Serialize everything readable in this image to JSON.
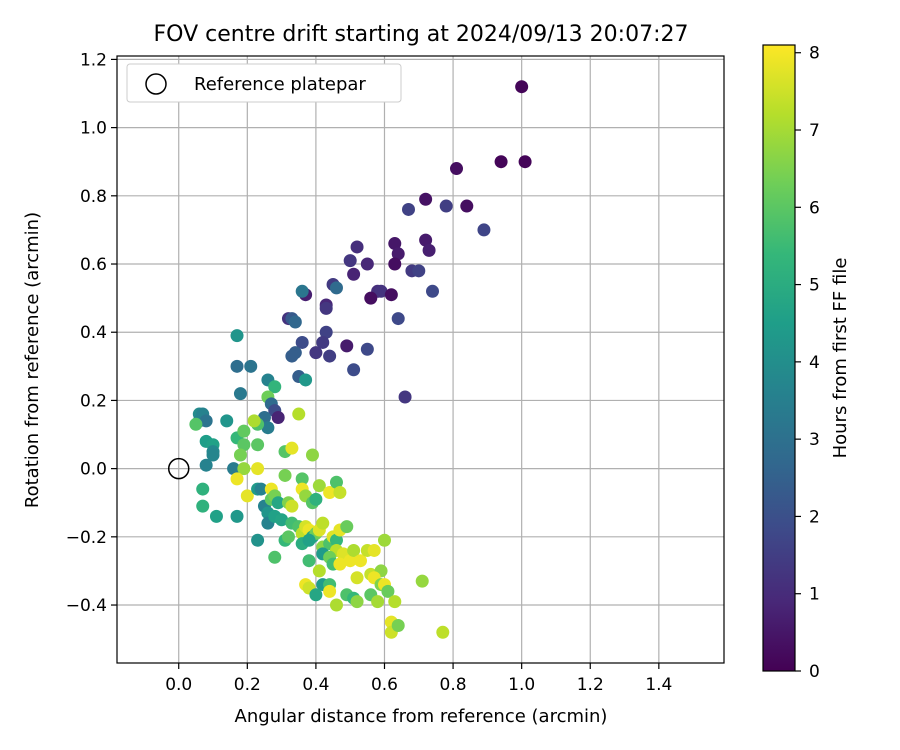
{
  "chart_data": {
    "type": "scatter",
    "title": "FOV centre drift starting at 2024/09/13 20:07:27",
    "xlabel": "Angular distance from reference (arcmin)",
    "ylabel": "Rotation from reference (arcmin)",
    "xlim": [
      -0.18,
      1.59
    ],
    "ylim": [
      -0.57,
      1.21
    ],
    "xticks": [
      0.0,
      0.2,
      0.4,
      0.6,
      0.8,
      1.0,
      1.2,
      1.4
    ],
    "xtick_labels": [
      "0.0",
      "0.2",
      "0.4",
      "0.6",
      "0.8",
      "1.0",
      "1.2",
      "1.4"
    ],
    "yticks": [
      -0.4,
      -0.2,
      0.0,
      0.2,
      0.4,
      0.6,
      0.8,
      1.0,
      1.2
    ],
    "ytick_labels": [
      "−0.4",
      "−0.2",
      "0.0",
      "0.2",
      "0.4",
      "0.6",
      "0.8",
      "1.0",
      "1.2"
    ],
    "grid": true,
    "legend": {
      "position": "upper-left",
      "label": "Reference platepar",
      "marker": "hollow-circle"
    },
    "reference_point": {
      "x": 0.0,
      "y": 0.0
    },
    "colorbar": {
      "label": "Hours from first FF file",
      "min": 0,
      "max": 8.1,
      "ticks": [
        0,
        1,
        2,
        3,
        4,
        5,
        6,
        7,
        8
      ],
      "tick_labels": [
        "0",
        "1",
        "2",
        "3",
        "4",
        "5",
        "6",
        "7",
        "8"
      ],
      "colormap": "viridis",
      "stops": [
        "#440154",
        "#482878",
        "#3e4989",
        "#31688e",
        "#26828e",
        "#1f9e89",
        "#35b779",
        "#6ece58",
        "#b5de2b",
        "#fde725"
      ]
    },
    "points": [
      {
        "x": 1.0,
        "y": 1.12,
        "c": 0.1
      },
      {
        "x": 0.94,
        "y": 0.9,
        "c": 0.1
      },
      {
        "x": 1.01,
        "y": 0.9,
        "c": 0.1
      },
      {
        "x": 0.81,
        "y": 0.88,
        "c": 0.3
      },
      {
        "x": 0.84,
        "y": 0.77,
        "c": 0.3
      },
      {
        "x": 0.72,
        "y": 0.79,
        "c": 0.4
      },
      {
        "x": 0.78,
        "y": 0.77,
        "c": 1.5
      },
      {
        "x": 0.89,
        "y": 0.7,
        "c": 1.7
      },
      {
        "x": 0.67,
        "y": 0.76,
        "c": 1.6
      },
      {
        "x": 0.72,
        "y": 0.67,
        "c": 0.6
      },
      {
        "x": 0.73,
        "y": 0.64,
        "c": 0.7
      },
      {
        "x": 0.63,
        "y": 0.66,
        "c": 0.5
      },
      {
        "x": 0.64,
        "y": 0.63,
        "c": 0.6
      },
      {
        "x": 0.63,
        "y": 0.6,
        "c": 0.3
      },
      {
        "x": 0.68,
        "y": 0.58,
        "c": 1.4
      },
      {
        "x": 0.7,
        "y": 0.58,
        "c": 1.6
      },
      {
        "x": 0.52,
        "y": 0.65,
        "c": 1.1
      },
      {
        "x": 0.5,
        "y": 0.61,
        "c": 1.3
      },
      {
        "x": 0.55,
        "y": 0.6,
        "c": 0.9
      },
      {
        "x": 0.51,
        "y": 0.57,
        "c": 0.8
      },
      {
        "x": 0.58,
        "y": 0.52,
        "c": 1.1
      },
      {
        "x": 0.59,
        "y": 0.52,
        "c": 1.2
      },
      {
        "x": 0.56,
        "y": 0.5,
        "c": 0.3
      },
      {
        "x": 0.62,
        "y": 0.51,
        "c": 0.3
      },
      {
        "x": 0.74,
        "y": 0.52,
        "c": 1.8
      },
      {
        "x": 0.64,
        "y": 0.44,
        "c": 1.8
      },
      {
        "x": 0.45,
        "y": 0.54,
        "c": 1.4
      },
      {
        "x": 0.46,
        "y": 0.53,
        "c": 2.8
      },
      {
        "x": 0.37,
        "y": 0.51,
        "c": 0.7
      },
      {
        "x": 0.36,
        "y": 0.52,
        "c": 3.2
      },
      {
        "x": 0.43,
        "y": 0.48,
        "c": 0.9
      },
      {
        "x": 0.43,
        "y": 0.47,
        "c": 1.3
      },
      {
        "x": 0.32,
        "y": 0.44,
        "c": 1.2
      },
      {
        "x": 0.33,
        "y": 0.44,
        "c": 2.3
      },
      {
        "x": 0.34,
        "y": 0.43,
        "c": 2.7
      },
      {
        "x": 0.43,
        "y": 0.4,
        "c": 1.6
      },
      {
        "x": 0.42,
        "y": 0.37,
        "c": 1.4
      },
      {
        "x": 0.4,
        "y": 0.34,
        "c": 1.3
      },
      {
        "x": 0.49,
        "y": 0.36,
        "c": 0.6
      },
      {
        "x": 0.44,
        "y": 0.33,
        "c": 1.5
      },
      {
        "x": 0.36,
        "y": 0.37,
        "c": 1.9
      },
      {
        "x": 0.34,
        "y": 0.34,
        "c": 2.4
      },
      {
        "x": 0.33,
        "y": 0.33,
        "c": 2.4
      },
      {
        "x": 0.51,
        "y": 0.29,
        "c": 1.9
      },
      {
        "x": 0.55,
        "y": 0.35,
        "c": 1.8
      },
      {
        "x": 0.66,
        "y": 0.21,
        "c": 1.3
      },
      {
        "x": 0.35,
        "y": 0.27,
        "c": 2.4
      },
      {
        "x": 0.37,
        "y": 0.26,
        "c": 4.3
      },
      {
        "x": 0.17,
        "y": 0.39,
        "c": 4.2
      },
      {
        "x": 0.17,
        "y": 0.3,
        "c": 2.9
      },
      {
        "x": 0.21,
        "y": 0.3,
        "c": 3.1
      },
      {
        "x": 0.26,
        "y": 0.26,
        "c": 3.6
      },
      {
        "x": 0.28,
        "y": 0.24,
        "c": 5.3
      },
      {
        "x": 0.18,
        "y": 0.22,
        "c": 3.3
      },
      {
        "x": 0.26,
        "y": 0.21,
        "c": 6.3
      },
      {
        "x": 0.27,
        "y": 0.19,
        "c": 2.8
      },
      {
        "x": 0.28,
        "y": 0.17,
        "c": 1.9
      },
      {
        "x": 0.29,
        "y": 0.15,
        "c": 0.8
      },
      {
        "x": 0.35,
        "y": 0.16,
        "c": 7.2
      },
      {
        "x": 0.25,
        "y": 0.15,
        "c": 2.9
      },
      {
        "x": 0.26,
        "y": 0.12,
        "c": 3.4
      },
      {
        "x": 0.23,
        "y": 0.13,
        "c": 5.8
      },
      {
        "x": 0.22,
        "y": 0.14,
        "c": 7.1
      },
      {
        "x": 0.06,
        "y": 0.16,
        "c": 3.9
      },
      {
        "x": 0.07,
        "y": 0.16,
        "c": 3.6
      },
      {
        "x": 0.06,
        "y": 0.14,
        "c": 3.6
      },
      {
        "x": 0.08,
        "y": 0.14,
        "c": 3.1
      },
      {
        "x": 0.05,
        "y": 0.13,
        "c": 5.9
      },
      {
        "x": 0.14,
        "y": 0.14,
        "c": 4.2
      },
      {
        "x": 0.08,
        "y": 0.08,
        "c": 4.5
      },
      {
        "x": 0.1,
        "y": 0.07,
        "c": 4.6
      },
      {
        "x": 0.1,
        "y": 0.05,
        "c": 3.8
      },
      {
        "x": 0.1,
        "y": 0.04,
        "c": 3.7
      },
      {
        "x": 0.08,
        "y": 0.01,
        "c": 3.6
      },
      {
        "x": 0.17,
        "y": 0.09,
        "c": 5.4
      },
      {
        "x": 0.19,
        "y": 0.11,
        "c": 6.1
      },
      {
        "x": 0.19,
        "y": 0.07,
        "c": 6.0
      },
      {
        "x": 0.23,
        "y": 0.07,
        "c": 6.0
      },
      {
        "x": 0.18,
        "y": 0.04,
        "c": 6.4
      },
      {
        "x": 0.16,
        "y": 0.0,
        "c": 3.4
      },
      {
        "x": 0.19,
        "y": 0.0,
        "c": 6.8
      },
      {
        "x": 0.17,
        "y": -0.03,
        "c": 7.9
      },
      {
        "x": 0.23,
        "y": 0.0,
        "c": 7.8
      },
      {
        "x": 0.31,
        "y": 0.05,
        "c": 5.9
      },
      {
        "x": 0.33,
        "y": 0.06,
        "c": 7.8
      },
      {
        "x": 0.39,
        "y": 0.04,
        "c": 6.7
      },
      {
        "x": 0.31,
        "y": -0.02,
        "c": 6.4
      },
      {
        "x": 0.36,
        "y": -0.03,
        "c": 5.9
      },
      {
        "x": 0.07,
        "y": -0.06,
        "c": 5.2
      },
      {
        "x": 0.07,
        "y": -0.11,
        "c": 5.2
      },
      {
        "x": 0.11,
        "y": -0.14,
        "c": 4.6
      },
      {
        "x": 0.17,
        "y": -0.14,
        "c": 4.3
      },
      {
        "x": 0.2,
        "y": -0.08,
        "c": 7.8
      },
      {
        "x": 0.23,
        "y": -0.06,
        "c": 4.4
      },
      {
        "x": 0.24,
        "y": -0.06,
        "c": 3.6
      },
      {
        "x": 0.25,
        "y": -0.11,
        "c": 3.6
      },
      {
        "x": 0.27,
        "y": -0.06,
        "c": 7.9
      },
      {
        "x": 0.27,
        "y": -0.09,
        "c": 6.1
      },
      {
        "x": 0.28,
        "y": -0.08,
        "c": 6.4
      },
      {
        "x": 0.29,
        "y": -0.1,
        "c": 4.8
      },
      {
        "x": 0.26,
        "y": -0.13,
        "c": 4.2
      },
      {
        "x": 0.26,
        "y": -0.16,
        "c": 3.6
      },
      {
        "x": 0.28,
        "y": -0.14,
        "c": 4.6
      },
      {
        "x": 0.3,
        "y": -0.15,
        "c": 4.7
      },
      {
        "x": 0.32,
        "y": -0.1,
        "c": 6.5
      },
      {
        "x": 0.33,
        "y": -0.11,
        "c": 7.5
      },
      {
        "x": 0.36,
        "y": -0.06,
        "c": 7.9
      },
      {
        "x": 0.37,
        "y": -0.08,
        "c": 6.8
      },
      {
        "x": 0.39,
        "y": -0.1,
        "c": 5.9
      },
      {
        "x": 0.4,
        "y": -0.09,
        "c": 5.2
      },
      {
        "x": 0.41,
        "y": -0.05,
        "c": 6.9
      },
      {
        "x": 0.44,
        "y": -0.07,
        "c": 7.9
      },
      {
        "x": 0.46,
        "y": -0.04,
        "c": 5.8
      },
      {
        "x": 0.47,
        "y": -0.07,
        "c": 7.4
      },
      {
        "x": 0.33,
        "y": -0.16,
        "c": 5.6
      },
      {
        "x": 0.35,
        "y": -0.17,
        "c": 5.8
      },
      {
        "x": 0.36,
        "y": -0.19,
        "c": 7.3
      },
      {
        "x": 0.37,
        "y": -0.17,
        "c": 7.6
      },
      {
        "x": 0.38,
        "y": -0.18,
        "c": 7.9
      },
      {
        "x": 0.39,
        "y": -0.2,
        "c": 4.8
      },
      {
        "x": 0.4,
        "y": -0.19,
        "c": 6.3
      },
      {
        "x": 0.41,
        "y": -0.18,
        "c": 7.7
      },
      {
        "x": 0.42,
        "y": -0.16,
        "c": 7.3
      },
      {
        "x": 0.23,
        "y": -0.21,
        "c": 4.1
      },
      {
        "x": 0.31,
        "y": -0.21,
        "c": 5.4
      },
      {
        "x": 0.32,
        "y": -0.2,
        "c": 6.0
      },
      {
        "x": 0.36,
        "y": -0.22,
        "c": 5.0
      },
      {
        "x": 0.38,
        "y": -0.21,
        "c": 4.6
      },
      {
        "x": 0.42,
        "y": -0.23,
        "c": 6.7
      },
      {
        "x": 0.44,
        "y": -0.22,
        "c": 5.8
      },
      {
        "x": 0.45,
        "y": -0.2,
        "c": 7.7
      },
      {
        "x": 0.46,
        "y": -0.21,
        "c": 5.4
      },
      {
        "x": 0.47,
        "y": -0.18,
        "c": 7.8
      },
      {
        "x": 0.49,
        "y": -0.17,
        "c": 6.2
      },
      {
        "x": 0.46,
        "y": -0.24,
        "c": 7.3
      },
      {
        "x": 0.42,
        "y": -0.25,
        "c": 4.4
      },
      {
        "x": 0.44,
        "y": -0.26,
        "c": 6.3
      },
      {
        "x": 0.45,
        "y": -0.28,
        "c": 5.6
      },
      {
        "x": 0.48,
        "y": -0.25,
        "c": 7.7
      },
      {
        "x": 0.5,
        "y": -0.27,
        "c": 7.9
      },
      {
        "x": 0.51,
        "y": -0.24,
        "c": 7.1
      },
      {
        "x": 0.53,
        "y": -0.27,
        "c": 7.9
      },
      {
        "x": 0.55,
        "y": -0.24,
        "c": 7.4
      },
      {
        "x": 0.57,
        "y": -0.24,
        "c": 7.8
      },
      {
        "x": 0.6,
        "y": -0.21,
        "c": 6.9
      },
      {
        "x": 0.28,
        "y": -0.26,
        "c": 5.8
      },
      {
        "x": 0.38,
        "y": -0.27,
        "c": 5.6
      },
      {
        "x": 0.41,
        "y": -0.3,
        "c": 7.2
      },
      {
        "x": 0.47,
        "y": -0.28,
        "c": 7.9
      },
      {
        "x": 0.52,
        "y": -0.32,
        "c": 7.6
      },
      {
        "x": 0.56,
        "y": -0.31,
        "c": 7.4
      },
      {
        "x": 0.59,
        "y": -0.3,
        "c": 6.7
      },
      {
        "x": 0.57,
        "y": -0.32,
        "c": 7.9
      },
      {
        "x": 0.59,
        "y": -0.34,
        "c": 6.5
      },
      {
        "x": 0.37,
        "y": -0.34,
        "c": 7.9
      },
      {
        "x": 0.38,
        "y": -0.35,
        "c": 7.5
      },
      {
        "x": 0.42,
        "y": -0.34,
        "c": 4.4
      },
      {
        "x": 0.44,
        "y": -0.34,
        "c": 5.6
      },
      {
        "x": 0.44,
        "y": -0.36,
        "c": 7.9
      },
      {
        "x": 0.4,
        "y": -0.37,
        "c": 4.8
      },
      {
        "x": 0.49,
        "y": -0.37,
        "c": 5.8
      },
      {
        "x": 0.51,
        "y": -0.38,
        "c": 5.4
      },
      {
        "x": 0.52,
        "y": -0.39,
        "c": 6.7
      },
      {
        "x": 0.46,
        "y": -0.4,
        "c": 7.1
      },
      {
        "x": 0.56,
        "y": -0.37,
        "c": 6.0
      },
      {
        "x": 0.58,
        "y": -0.39,
        "c": 7.0
      },
      {
        "x": 0.6,
        "y": -0.34,
        "c": 7.9
      },
      {
        "x": 0.61,
        "y": -0.36,
        "c": 6.2
      },
      {
        "x": 0.63,
        "y": -0.39,
        "c": 7.2
      },
      {
        "x": 0.71,
        "y": -0.33,
        "c": 6.8
      },
      {
        "x": 0.62,
        "y": -0.45,
        "c": 7.8
      },
      {
        "x": 0.62,
        "y": -0.48,
        "c": 7.5
      },
      {
        "x": 0.64,
        "y": -0.46,
        "c": 6.4
      },
      {
        "x": 0.77,
        "y": -0.48,
        "c": 7.3
      }
    ]
  }
}
